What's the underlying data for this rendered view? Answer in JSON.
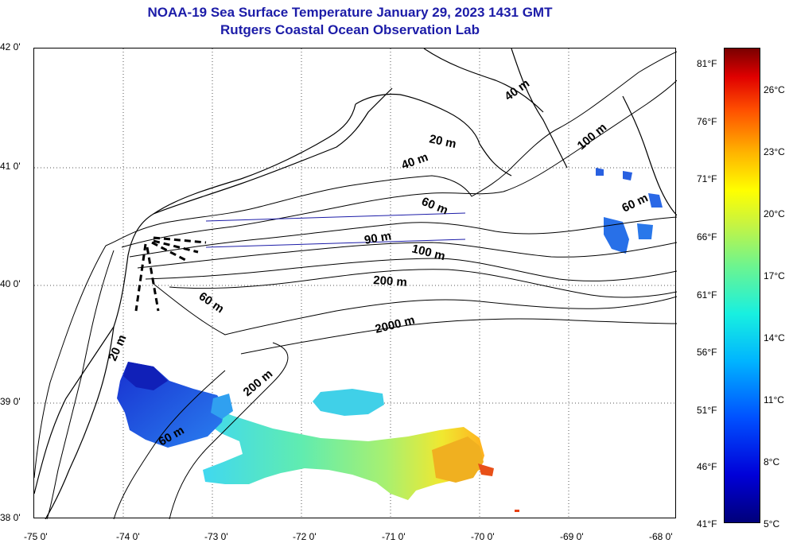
{
  "header": {
    "title": "NOAA-19 Sea Surface Temperature January 29, 2023 1431 GMT",
    "subtitle": "Rutgers Coastal Ocean Observation Lab"
  },
  "axes": {
    "lat_ticks": [
      "42 0'",
      "41 0'",
      "40 0'",
      "39 0'",
      "38 0'"
    ],
    "lon_ticks": [
      "-75 0'",
      "-74 0'",
      "-73 0'",
      "-72 0'",
      "-71 0'",
      "-70 0'",
      "-69 0'",
      "-68 0'"
    ]
  },
  "contours": [
    {
      "label": "20 m"
    },
    {
      "label": "40 m"
    },
    {
      "label": "40 m"
    },
    {
      "label": "100 m"
    },
    {
      "label": "60 m"
    },
    {
      "label": "60 m"
    },
    {
      "label": "90 m"
    },
    {
      "label": "100 m"
    },
    {
      "label": "200 m"
    },
    {
      "label": "60 m"
    },
    {
      "label": "2000 m"
    },
    {
      "label": "20 m"
    },
    {
      "label": "200 m"
    },
    {
      "label": "60 m"
    }
  ],
  "colorbar": {
    "f_labels": [
      "81°F",
      "76°F",
      "71°F",
      "66°F",
      "61°F",
      "56°F",
      "51°F",
      "46°F",
      "41°F"
    ],
    "c_labels": [
      "26°C",
      "23°C",
      "20°C",
      "17°C",
      "14°C",
      "11°C",
      "8°C",
      "5°C"
    ]
  },
  "colors": {
    "title": "#1c1ca8",
    "coast": "#000000",
    "transect": "#1c1ca8"
  }
}
